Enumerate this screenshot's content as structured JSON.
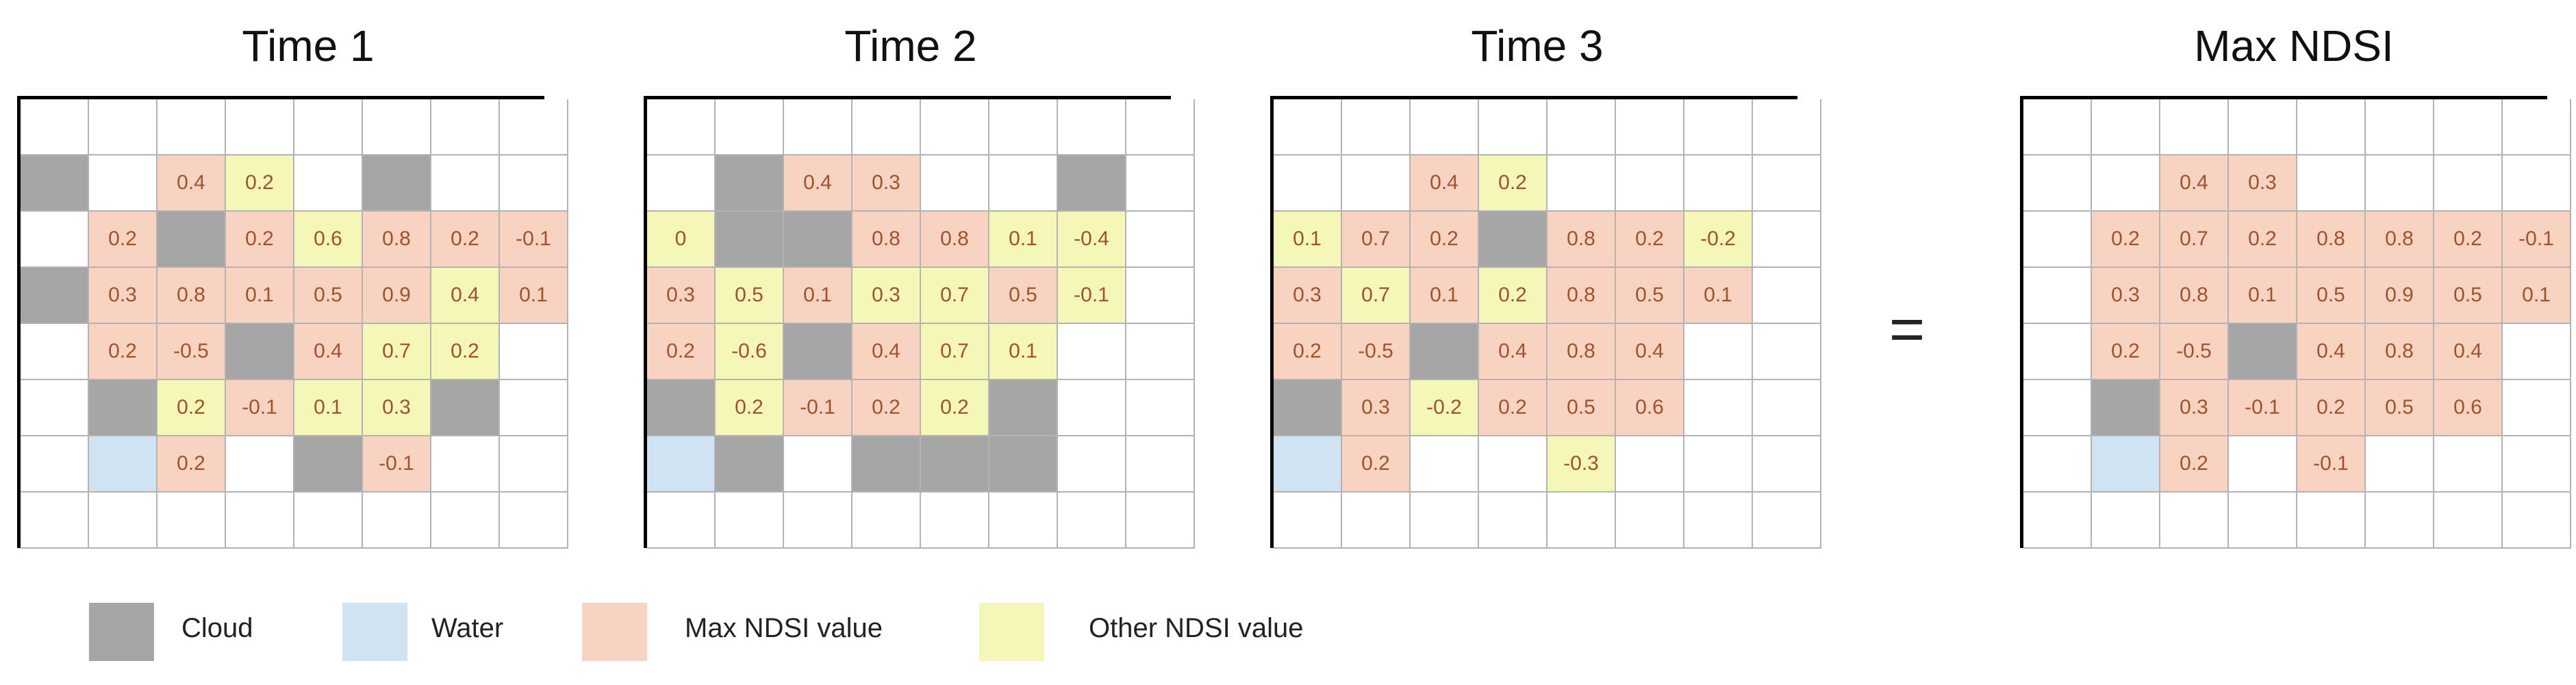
{
  "colors": {
    "cloud": "#a6a6a6",
    "water": "#cfe3f3",
    "max": "#f8d3c2",
    "other": "#f4f7b7",
    "empty": "#ffffff",
    "text": "#a0522d"
  },
  "equals_sign": "=",
  "legend": [
    {
      "key": "cloud",
      "label": "Cloud"
    },
    {
      "key": "water",
      "label": "Water"
    },
    {
      "key": "max",
      "label": "Max NDSI value"
    },
    {
      "key": "other",
      "label": "Other NDSI value"
    }
  ],
  "panels": [
    {
      "title": "Time 1",
      "rows": [
        [
          [
            "e",
            ""
          ],
          [
            "e",
            ""
          ],
          [
            "e",
            ""
          ],
          [
            "e",
            ""
          ],
          [
            "e",
            ""
          ],
          [
            "e",
            ""
          ],
          [
            "e",
            ""
          ],
          [
            "e",
            ""
          ]
        ],
        [
          [
            "c",
            ""
          ],
          [
            "e",
            ""
          ],
          [
            "m",
            "0.4"
          ],
          [
            "o",
            "0.2"
          ],
          [
            "e",
            ""
          ],
          [
            "c",
            ""
          ],
          [
            "e",
            ""
          ],
          [
            "e",
            ""
          ]
        ],
        [
          [
            "e",
            ""
          ],
          [
            "m",
            "0.2"
          ],
          [
            "c",
            ""
          ],
          [
            "m",
            "0.2"
          ],
          [
            "o",
            "0.6"
          ],
          [
            "m",
            "0.8"
          ],
          [
            "m",
            "0.2"
          ],
          [
            "m",
            "-0.1"
          ]
        ],
        [
          [
            "c",
            ""
          ],
          [
            "m",
            "0.3"
          ],
          [
            "m",
            "0.8"
          ],
          [
            "m",
            "0.1"
          ],
          [
            "m",
            "0.5"
          ],
          [
            "m",
            "0.9"
          ],
          [
            "o",
            "0.4"
          ],
          [
            "m",
            "0.1"
          ]
        ],
        [
          [
            "e",
            ""
          ],
          [
            "m",
            "0.2"
          ],
          [
            "m",
            "-0.5"
          ],
          [
            "c",
            ""
          ],
          [
            "m",
            "0.4"
          ],
          [
            "o",
            "0.7"
          ],
          [
            "o",
            "0.2"
          ],
          [
            "e",
            ""
          ]
        ],
        [
          [
            "e",
            ""
          ],
          [
            "c",
            ""
          ],
          [
            "o",
            "0.2"
          ],
          [
            "m",
            "-0.1"
          ],
          [
            "o",
            "0.1"
          ],
          [
            "o",
            "0.3"
          ],
          [
            "c",
            ""
          ],
          [
            "e",
            ""
          ]
        ],
        [
          [
            "e",
            ""
          ],
          [
            "w",
            ""
          ],
          [
            "m",
            "0.2"
          ],
          [
            "e",
            ""
          ],
          [
            "c",
            ""
          ],
          [
            "m",
            "-0.1"
          ],
          [
            "e",
            ""
          ],
          [
            "e",
            ""
          ]
        ],
        [
          [
            "e",
            ""
          ],
          [
            "e",
            ""
          ],
          [
            "e",
            ""
          ],
          [
            "e",
            ""
          ],
          [
            "e",
            ""
          ],
          [
            "e",
            ""
          ],
          [
            "e",
            ""
          ],
          [
            "e",
            ""
          ]
        ]
      ]
    },
    {
      "title": "Time 2",
      "rows": [
        [
          [
            "e",
            ""
          ],
          [
            "e",
            ""
          ],
          [
            "e",
            ""
          ],
          [
            "e",
            ""
          ],
          [
            "e",
            ""
          ],
          [
            "e",
            ""
          ],
          [
            "e",
            ""
          ],
          [
            "e",
            ""
          ]
        ],
        [
          [
            "e",
            ""
          ],
          [
            "c",
            ""
          ],
          [
            "m",
            "0.4"
          ],
          [
            "m",
            "0.3"
          ],
          [
            "e",
            ""
          ],
          [
            "e",
            ""
          ],
          [
            "c",
            ""
          ],
          [
            "e",
            ""
          ]
        ],
        [
          [
            "o",
            "0"
          ],
          [
            "c",
            ""
          ],
          [
            "c",
            ""
          ],
          [
            "m",
            "0.8"
          ],
          [
            "m",
            "0.8"
          ],
          [
            "o",
            "0.1"
          ],
          [
            "o",
            "-0.4"
          ],
          [
            "e",
            ""
          ]
        ],
        [
          [
            "m",
            "0.3"
          ],
          [
            "o",
            "0.5"
          ],
          [
            "m",
            "0.1"
          ],
          [
            "o",
            "0.3"
          ],
          [
            "o",
            "0.7"
          ],
          [
            "m",
            "0.5"
          ],
          [
            "o",
            "-0.1"
          ],
          [
            "e",
            ""
          ]
        ],
        [
          [
            "m",
            "0.2"
          ],
          [
            "o",
            "-0.6"
          ],
          [
            "c",
            ""
          ],
          [
            "m",
            "0.4"
          ],
          [
            "o",
            "0.7"
          ],
          [
            "o",
            "0.1"
          ],
          [
            "e",
            ""
          ],
          [
            "e",
            ""
          ]
        ],
        [
          [
            "c",
            ""
          ],
          [
            "o",
            "0.2"
          ],
          [
            "m",
            "-0.1"
          ],
          [
            "m",
            "0.2"
          ],
          [
            "o",
            "0.2"
          ],
          [
            "c",
            ""
          ],
          [
            "e",
            ""
          ],
          [
            "e",
            ""
          ]
        ],
        [
          [
            "w",
            ""
          ],
          [
            "c",
            ""
          ],
          [
            "e",
            ""
          ],
          [
            "c",
            ""
          ],
          [
            "c",
            ""
          ],
          [
            "c",
            ""
          ],
          [
            "e",
            ""
          ],
          [
            "e",
            ""
          ]
        ],
        [
          [
            "e",
            ""
          ],
          [
            "e",
            ""
          ],
          [
            "e",
            ""
          ],
          [
            "e",
            ""
          ],
          [
            "e",
            ""
          ],
          [
            "e",
            ""
          ],
          [
            "e",
            ""
          ],
          [
            "e",
            ""
          ]
        ]
      ]
    },
    {
      "title": "Time 3",
      "rows": [
        [
          [
            "e",
            ""
          ],
          [
            "e",
            ""
          ],
          [
            "e",
            ""
          ],
          [
            "e",
            ""
          ],
          [
            "e",
            ""
          ],
          [
            "e",
            ""
          ],
          [
            "e",
            ""
          ],
          [
            "e",
            ""
          ]
        ],
        [
          [
            "e",
            ""
          ],
          [
            "e",
            ""
          ],
          [
            "m",
            "0.4"
          ],
          [
            "o",
            "0.2"
          ],
          [
            "e",
            ""
          ],
          [
            "e",
            ""
          ],
          [
            "e",
            ""
          ],
          [
            "e",
            ""
          ]
        ],
        [
          [
            "o",
            "0.1"
          ],
          [
            "m",
            "0.7"
          ],
          [
            "m",
            "0.2"
          ],
          [
            "c",
            ""
          ],
          [
            "m",
            "0.8"
          ],
          [
            "m",
            "0.2"
          ],
          [
            "o",
            "-0.2"
          ],
          [
            "e",
            ""
          ]
        ],
        [
          [
            "m",
            "0.3"
          ],
          [
            "o",
            "0.7"
          ],
          [
            "m",
            "0.1"
          ],
          [
            "o",
            "0.2"
          ],
          [
            "m",
            "0.8"
          ],
          [
            "m",
            "0.5"
          ],
          [
            "m",
            "0.1"
          ],
          [
            "e",
            ""
          ]
        ],
        [
          [
            "m",
            "0.2"
          ],
          [
            "m",
            "-0.5"
          ],
          [
            "c",
            ""
          ],
          [
            "m",
            "0.4"
          ],
          [
            "m",
            "0.8"
          ],
          [
            "m",
            "0.4"
          ],
          [
            "e",
            ""
          ],
          [
            "e",
            ""
          ]
        ],
        [
          [
            "c",
            ""
          ],
          [
            "m",
            "0.3"
          ],
          [
            "o",
            "-0.2"
          ],
          [
            "m",
            "0.2"
          ],
          [
            "m",
            "0.5"
          ],
          [
            "m",
            "0.6"
          ],
          [
            "e",
            ""
          ],
          [
            "e",
            ""
          ]
        ],
        [
          [
            "w",
            ""
          ],
          [
            "m",
            "0.2"
          ],
          [
            "e",
            ""
          ],
          [
            "e",
            ""
          ],
          [
            "o",
            "-0.3"
          ],
          [
            "e",
            ""
          ],
          [
            "e",
            ""
          ],
          [
            "e",
            ""
          ]
        ],
        [
          [
            "e",
            ""
          ],
          [
            "e",
            ""
          ],
          [
            "e",
            ""
          ],
          [
            "e",
            ""
          ],
          [
            "e",
            ""
          ],
          [
            "e",
            ""
          ],
          [
            "e",
            ""
          ],
          [
            "e",
            ""
          ]
        ]
      ]
    },
    {
      "title": "Max NDSI",
      "rows": [
        [
          [
            "e",
            ""
          ],
          [
            "e",
            ""
          ],
          [
            "e",
            ""
          ],
          [
            "e",
            ""
          ],
          [
            "e",
            ""
          ],
          [
            "e",
            ""
          ],
          [
            "e",
            ""
          ],
          [
            "e",
            ""
          ]
        ],
        [
          [
            "e",
            ""
          ],
          [
            "e",
            ""
          ],
          [
            "m",
            "0.4"
          ],
          [
            "m",
            "0.3"
          ],
          [
            "e",
            ""
          ],
          [
            "e",
            ""
          ],
          [
            "e",
            ""
          ],
          [
            "e",
            ""
          ]
        ],
        [
          [
            "e",
            ""
          ],
          [
            "m",
            "0.2"
          ],
          [
            "m",
            "0.7"
          ],
          [
            "m",
            "0.2"
          ],
          [
            "m",
            "0.8"
          ],
          [
            "m",
            "0.8"
          ],
          [
            "m",
            "0.2"
          ],
          [
            "m",
            "-0.1"
          ]
        ],
        [
          [
            "e",
            ""
          ],
          [
            "m",
            "0.3"
          ],
          [
            "m",
            "0.8"
          ],
          [
            "m",
            "0.1"
          ],
          [
            "m",
            "0.5"
          ],
          [
            "m",
            "0.9"
          ],
          [
            "m",
            "0.5"
          ],
          [
            "m",
            "0.1"
          ]
        ],
        [
          [
            "e",
            ""
          ],
          [
            "m",
            "0.2"
          ],
          [
            "m",
            "-0.5"
          ],
          [
            "c",
            ""
          ],
          [
            "m",
            "0.4"
          ],
          [
            "m",
            "0.8"
          ],
          [
            "m",
            "0.4"
          ],
          [
            "e",
            ""
          ]
        ],
        [
          [
            "e",
            ""
          ],
          [
            "c",
            ""
          ],
          [
            "m",
            "0.3"
          ],
          [
            "m",
            "-0.1"
          ],
          [
            "m",
            "0.2"
          ],
          [
            "m",
            "0.5"
          ],
          [
            "m",
            "0.6"
          ],
          [
            "e",
            ""
          ]
        ],
        [
          [
            "e",
            ""
          ],
          [
            "w",
            ""
          ],
          [
            "m",
            "0.2"
          ],
          [
            "e",
            ""
          ],
          [
            "m",
            "-0.1"
          ],
          [
            "e",
            ""
          ],
          [
            "e",
            ""
          ],
          [
            "e",
            ""
          ]
        ],
        [
          [
            "e",
            ""
          ],
          [
            "e",
            ""
          ],
          [
            "e",
            ""
          ],
          [
            "e",
            ""
          ],
          [
            "e",
            ""
          ],
          [
            "e",
            ""
          ],
          [
            "e",
            ""
          ],
          [
            "e",
            ""
          ]
        ]
      ]
    }
  ]
}
